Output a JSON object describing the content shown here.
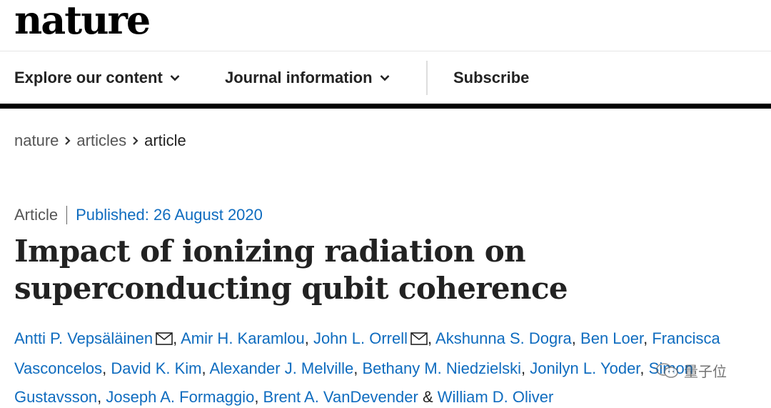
{
  "header": {
    "logo_text": "nature"
  },
  "nav": {
    "items": [
      {
        "label": "Explore our content",
        "has_dropdown": true
      },
      {
        "label": "Journal information",
        "has_dropdown": true
      },
      {
        "label": "Subscribe",
        "has_dropdown": false
      }
    ]
  },
  "breadcrumb": {
    "items": [
      "nature",
      "articles",
      "article"
    ],
    "separator_icon": "chevron-right-icon"
  },
  "article": {
    "type": "Article",
    "published": "Published: 26 August 2020",
    "title": "Impact of ionizing radiation on superconducting qubit coherence",
    "authors": [
      {
        "name": "Antti P. Vepsäläinen",
        "email_icon": true
      },
      {
        "name": "Amir H. Karamlou",
        "email_icon": false
      },
      {
        "name": "John L. Orrell",
        "email_icon": true
      },
      {
        "name": "Akshunna S. Dogra",
        "email_icon": false
      },
      {
        "name": "Ben Loer",
        "email_icon": false
      },
      {
        "name": "Francisca Vasconcelos",
        "email_icon": false
      },
      {
        "name": "David K. Kim",
        "email_icon": false
      },
      {
        "name": "Alexander J. Melville",
        "email_icon": false
      },
      {
        "name": "Bethany M. Niedzielski",
        "email_icon": false
      },
      {
        "name": "Jonilyn L. Yoder",
        "email_icon": false
      },
      {
        "name": "Simon Gustavsson",
        "email_icon": false
      },
      {
        "name": "Joseph A. Formaggio",
        "email_icon": false
      },
      {
        "name": "Brent A. VanDevender",
        "email_icon": false
      },
      {
        "name": "William D. Oliver",
        "email_icon": false
      }
    ],
    "last_separator": "&"
  },
  "watermark": {
    "text": "量子位"
  },
  "colors": {
    "link": "#0f6cbf",
    "text": "#222222",
    "muted": "#555555",
    "nav_bar": "#000000"
  }
}
